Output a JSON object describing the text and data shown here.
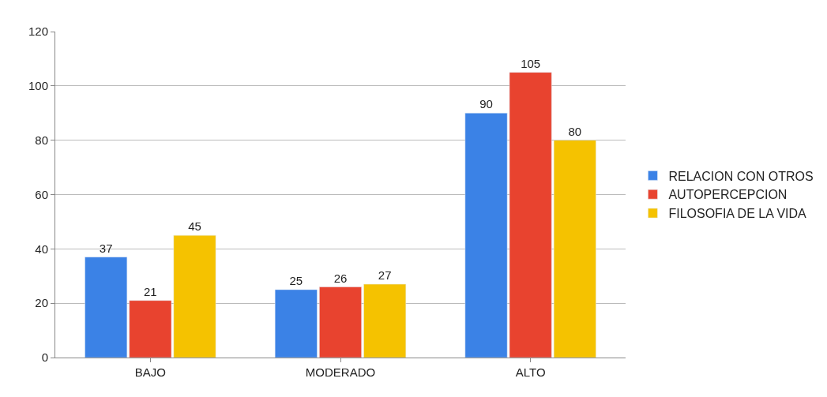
{
  "chart_data": {
    "type": "bar",
    "categories": [
      "BAJO",
      "MODERADO",
      "ALTO"
    ],
    "series": [
      {
        "name": "RELACION CON OTROS",
        "color": "#3b82e6",
        "values": [
          37,
          25,
          90
        ]
      },
      {
        "name": "AUTOPERCEPCION",
        "color": "#e8432f",
        "values": [
          21,
          26,
          105
        ]
      },
      {
        "name": "FILOSOFIA DE LA VIDA",
        "color": "#f5c200",
        "values": [
          45,
          27,
          80
        ]
      }
    ],
    "ylim": [
      0,
      120
    ],
    "yticks": [
      0,
      20,
      40,
      60,
      80,
      100,
      120
    ],
    "grid": "y",
    "legend": "right",
    "data_labels": true
  }
}
